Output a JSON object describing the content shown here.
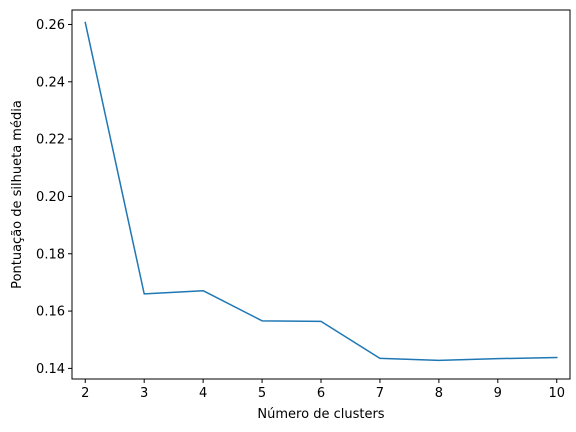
{
  "chart_data": {
    "type": "line",
    "title": "",
    "xlabel": "Número de clusters",
    "ylabel": "Pontuação de silhueta média",
    "x": [
      2,
      3,
      4,
      5,
      6,
      7,
      8,
      9,
      10
    ],
    "series": [
      {
        "values": [
          0.2607,
          0.166,
          0.1671,
          0.1566,
          0.1564,
          0.1435,
          0.1428,
          0.1434,
          0.1438
        ],
        "color": "#1f77b4"
      }
    ],
    "xticks": [
      "2",
      "3",
      "4",
      "5",
      "6",
      "7",
      "8",
      "9",
      "10"
    ],
    "yticks": [
      "0.14",
      "0.16",
      "0.18",
      "0.20",
      "0.22",
      "0.24",
      "0.26"
    ],
    "grid": false,
    "legend": false
  }
}
